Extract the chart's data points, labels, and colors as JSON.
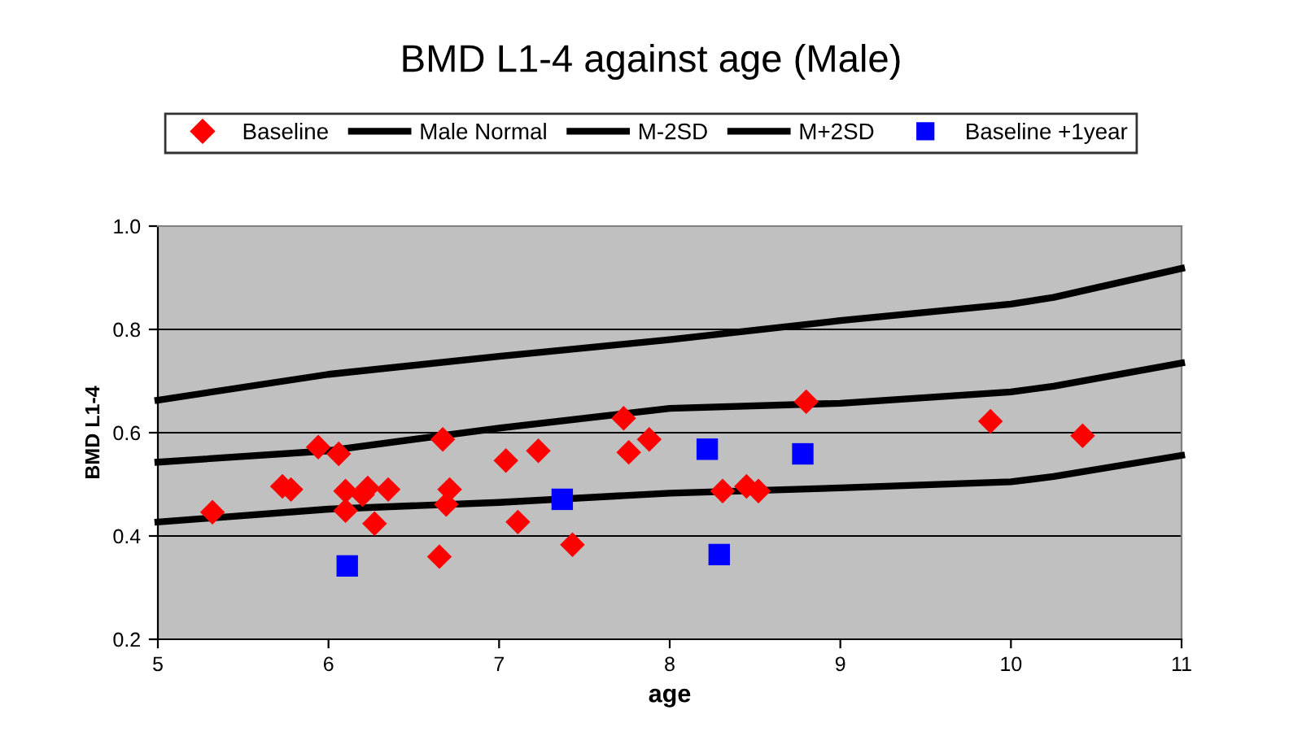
{
  "chart_data": {
    "type": "scatter",
    "title": "BMD L1-4 against age (Male)",
    "xlabel": "age",
    "ylabel": "BMD L1-4",
    "xlim": [
      5,
      11
    ],
    "xticks": [
      5,
      6,
      7,
      8,
      9,
      10,
      11
    ],
    "ylim": [
      0.2,
      1.0
    ],
    "yticks": [
      {
        "value": 0.2,
        "label": "0.2"
      },
      {
        "value": 0.4,
        "label": "0.4"
      },
      {
        "value": 0.6,
        "label": "0.6"
      },
      {
        "value": 0.8,
        "label": "0.8"
      },
      {
        "value": 1.0,
        "label": "1.0"
      }
    ],
    "grid": "y",
    "legend": "top",
    "series": [
      {
        "name": "Baseline",
        "marker": "diamond",
        "color": "#ff0000",
        "x": [
          5.32,
          5.73,
          5.78,
          5.94,
          6.06,
          6.1,
          6.1,
          6.2,
          6.23,
          6.27,
          6.35,
          6.65,
          6.67,
          6.69,
          6.71,
          7.04,
          7.11,
          7.23,
          7.43,
          7.73,
          7.76,
          7.88,
          8.31,
          8.45,
          8.52,
          8.8,
          9.88,
          10.42
        ],
        "values": [
          0.446,
          0.496,
          0.49,
          0.572,
          0.559,
          0.487,
          0.449,
          0.48,
          0.493,
          0.424,
          0.49,
          0.36,
          0.587,
          0.461,
          0.49,
          0.546,
          0.427,
          0.565,
          0.383,
          0.628,
          0.562,
          0.587,
          0.487,
          0.496,
          0.487,
          0.66,
          0.622,
          0.594
        ]
      },
      {
        "name": "Male Normal",
        "type": "line",
        "color": "#000000",
        "x": [
          5,
          6,
          7,
          8,
          9,
          10,
          10.25,
          11
        ],
        "values": [
          0.543,
          0.565,
          0.609,
          0.647,
          0.657,
          0.679,
          0.69,
          0.735
        ]
      },
      {
        "name": "M-2SD",
        "type": "line",
        "color": "#000000",
        "x": [
          5,
          6,
          7,
          8,
          9,
          10,
          10.25,
          11
        ],
        "values": [
          0.427,
          0.452,
          0.465,
          0.483,
          0.493,
          0.505,
          0.515,
          0.556
        ]
      },
      {
        "name": "M+2SD",
        "type": "line",
        "color": "#000000",
        "x": [
          5,
          6,
          7,
          8,
          9,
          10,
          10.25,
          11
        ],
        "values": [
          0.663,
          0.713,
          0.748,
          0.78,
          0.817,
          0.849,
          0.862,
          0.918
        ]
      },
      {
        "name": "Baseline +1year",
        "marker": "square",
        "color": "#0000ff",
        "x": [
          6.11,
          7.37,
          8.22,
          8.29,
          8.78
        ],
        "values": [
          0.342,
          0.471,
          0.568,
          0.364,
          0.559
        ]
      }
    ]
  }
}
